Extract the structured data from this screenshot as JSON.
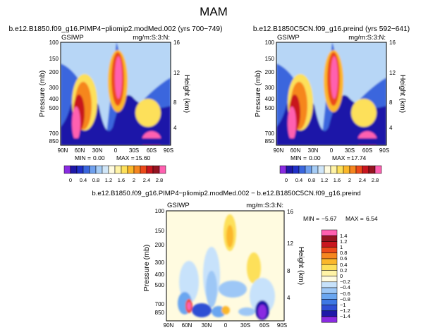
{
  "page": {
    "season_title": "MAM"
  },
  "colors": {
    "main_scale": [
      "#8a2be2",
      "#1e18a8",
      "#2030c8",
      "#3a66dd",
      "#6fa0ee",
      "#a6ccf5",
      "#d0e6f8",
      "#fffbe0",
      "#fff3a6",
      "#fde05a",
      "#fbb72a",
      "#f6861f",
      "#ec4a1a",
      "#c8161f",
      "#951421",
      "#ff60b0"
    ],
    "diff_scale": [
      "#8a2be2",
      "#1e18a8",
      "#2f4fd4",
      "#3e78e4",
      "#6aa6f0",
      "#9dc7f6",
      "#c7e2fb",
      "#fffbe0",
      "#fff3a6",
      "#fde05a",
      "#fbb72a",
      "#f6861f",
      "#ec4a1a",
      "#c8161f",
      "#951421",
      "#ff60b0"
    ]
  },
  "chart_data": [
    {
      "type": "heatmap",
      "id": "panel-left",
      "title": "b.e12.B1850.f09_g16.PIMP4−pliomip2.modMed.002 (yrs 700−749)",
      "var_label": "GSIWP",
      "units_label": "mg/m:S:3:N:",
      "ylabel": "Pressure (mb)",
      "ylabel_right": "Height (km)",
      "x_ticks": [
        "90N",
        "60N",
        "30N",
        "0",
        "30S",
        "60S",
        "90S"
      ],
      "y_ticks": [
        "100",
        "150",
        "200",
        "300",
        "400",
        "500",
        "700",
        "850"
      ],
      "y_ticks_right": [
        "16",
        "12",
        "8",
        "4"
      ],
      "stats": {
        "min_label": "MIN =",
        "min": "0.00",
        "max_label": "MAX =",
        "max": "15.60"
      },
      "colorbar": [
        "0",
        "0.4",
        "0.8",
        "1.2",
        "1.6",
        "2",
        "2.4",
        "2.8"
      ],
      "xlim": [
        90,
        -90
      ],
      "ylim": [
        100,
        925
      ]
    },
    {
      "type": "heatmap",
      "id": "panel-right",
      "title": "b.e12.B1850C5CN.f09_g16.preind (yrs 592−641)",
      "var_label": "GSIWP",
      "units_label": "mg/m:S:3:N:",
      "ylabel": "Pressure (mb)",
      "ylabel_right": "Height (km)",
      "x_ticks": [
        "90N",
        "60N",
        "30N",
        "0",
        "30S",
        "60S",
        "90S"
      ],
      "y_ticks": [
        "100",
        "150",
        "200",
        "300",
        "400",
        "500",
        "700",
        "850"
      ],
      "y_ticks_right": [
        "16",
        "12",
        "8",
        "4"
      ],
      "stats": {
        "min_label": "MIN =",
        "min": "0.00",
        "max_label": "MAX =",
        "max": "17.74"
      },
      "colorbar": [
        "0",
        "0.4",
        "0.8",
        "1.2",
        "1.6",
        "2",
        "2.4",
        "2.8"
      ],
      "xlim": [
        90,
        -90
      ],
      "ylim": [
        100,
        925
      ]
    },
    {
      "type": "heatmap",
      "id": "panel-diff",
      "title": "b.e12.B1850.f09_g16.PIMP4−pliomip2.modMed.002 − b.e12.B1850C5CN.f09_g16.preind",
      "var_label": "GSIWP",
      "units_label": "mg/m:S:3:N:",
      "ylabel": "Pressure (mb)",
      "ylabel_right": "Height (km)",
      "x_ticks": [
        "90N",
        "60N",
        "30N",
        "0",
        "30S",
        "60S",
        "90S"
      ],
      "y_ticks": [
        "100",
        "150",
        "200",
        "300",
        "400",
        "500",
        "700",
        "850"
      ],
      "y_ticks_right": [
        "16",
        "12",
        "8",
        "4"
      ],
      "stats": {
        "min_label": "MIN =",
        "min": "−5.67",
        "max_label": "MAX =",
        "max": "6.54"
      },
      "colorbar": [
        "1.4",
        "1.2",
        "1",
        "0.8",
        "0.6",
        "0.4",
        "0.2",
        "0",
        "−0.2",
        "−0.4",
        "−0.6",
        "−0.8",
        "−1",
        "−1.2",
        "−1.4"
      ],
      "xlim": [
        90,
        -90
      ],
      "ylim": [
        100,
        925
      ]
    }
  ]
}
